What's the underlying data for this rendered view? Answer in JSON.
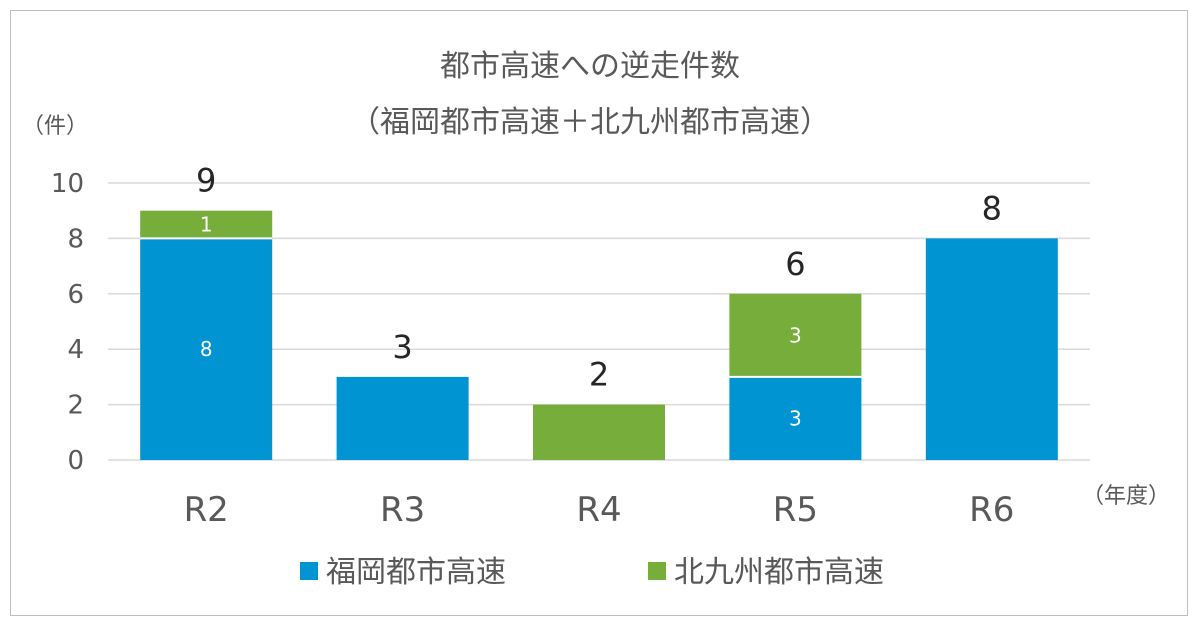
{
  "chart_data": {
    "type": "bar",
    "stacked": true,
    "title": "都市高速への逆走件数",
    "subtitle": "（福岡都市高速＋北九州都市高速）",
    "ylabel": "（件）",
    "xlabel": "（年度）",
    "categories": [
      "R2",
      "R3",
      "R4",
      "R5",
      "R6"
    ],
    "series": [
      {
        "name": "福岡都市高速",
        "values": [
          8,
          3,
          0,
          3,
          8
        ],
        "color": "#0094d3"
      },
      {
        "name": "北九州都市高速",
        "values": [
          1,
          0,
          2,
          3,
          0
        ],
        "color": "#76ad3b"
      }
    ],
    "totals": [
      9,
      3,
      2,
      6,
      8
    ],
    "segment_labels": [
      {
        "category": "R2",
        "series": "福岡都市高速",
        "text": "8"
      },
      {
        "category": "R2",
        "series": "北九州都市高速",
        "text": "1"
      },
      {
        "category": "R5",
        "series": "福岡都市高速",
        "text": "3"
      },
      {
        "category": "R5",
        "series": "北九州都市高速",
        "text": "3"
      }
    ],
    "ylim": [
      0,
      10
    ],
    "yticks": [
      0,
      2,
      4,
      6,
      8,
      10
    ],
    "grid": true,
    "legend_position": "bottom",
    "gridline_color": "#d9d9d9"
  }
}
